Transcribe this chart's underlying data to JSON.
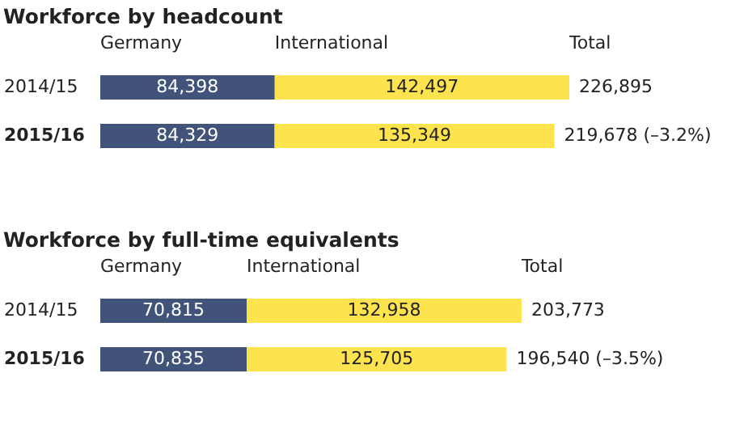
{
  "chart_data": [
    {
      "type": "bar",
      "orientation": "horizontal",
      "stacked": true,
      "title": "Workforce by headcount",
      "categories": [
        "2014/15",
        "2015/16"
      ],
      "series": [
        {
          "name": "Germany",
          "color": "#42537a",
          "values": [
            84398,
            84329
          ],
          "value_labels": [
            "84,398",
            "84,329"
          ]
        },
        {
          "name": "International",
          "color": "#fde34e",
          "values": [
            142497,
            135349
          ],
          "value_labels": [
            "142,497",
            "135,349"
          ]
        }
      ],
      "totals": [
        "226,895",
        "219,678 (–3.2%)"
      ],
      "annotations": [
        "Total"
      ],
      "legend": "top"
    },
    {
      "type": "bar",
      "orientation": "horizontal",
      "stacked": true,
      "title": "Workforce by full-time equivalents",
      "categories": [
        "2014/15",
        "2015/16"
      ],
      "series": [
        {
          "name": "Germany",
          "color": "#42537a",
          "values": [
            70815,
            70835
          ],
          "value_labels": [
            "70,815",
            "70,835"
          ]
        },
        {
          "name": "International",
          "color": "#fde34e",
          "values": [
            132958,
            125705
          ],
          "value_labels": [
            "132,958",
            "125,705"
          ]
        }
      ],
      "totals": [
        "203,773",
        "196,540 (–3.5%)"
      ],
      "annotations": [
        "Total"
      ],
      "legend": "top"
    }
  ]
}
